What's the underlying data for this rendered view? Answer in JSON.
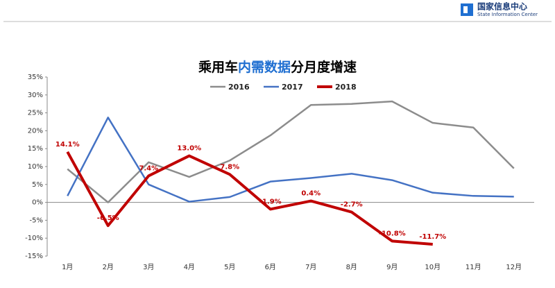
{
  "header": {
    "org": "国家信息中心",
    "org_en": "State Information Center"
  },
  "chart_data": {
    "type": "line",
    "title": [
      {
        "text": "乘用车",
        "color": "#000000"
      },
      {
        "text": "内需数据",
        "color": "#1f6fd1"
      },
      {
        "text": "分月度增速",
        "color": "#000000"
      }
    ],
    "categories": [
      "1月",
      "2月",
      "3月",
      "4月",
      "5月",
      "6月",
      "7月",
      "8月",
      "9月",
      "10月",
      "11月",
      "12月"
    ],
    "series": [
      {
        "name": "2016",
        "color": "#8c8c8c",
        "width": 2.5,
        "values": [
          9.3,
          0,
          11.2,
          7.1,
          11.7,
          18.7,
          27.2,
          27.5,
          28.2,
          22.2,
          20.9,
          9.5
        ]
      },
      {
        "name": "2017",
        "color": "#4472c4",
        "width": 2.5,
        "values": [
          1.8,
          23.7,
          5.0,
          0.2,
          1.5,
          5.8,
          6.8,
          8.0,
          6.2,
          2.7,
          1.8,
          1.6
        ]
      },
      {
        "name": "2018",
        "color": "#c00000",
        "width": 4,
        "values": [
          14.1,
          -6.5,
          7.4,
          13.0,
          7.8,
          -1.9,
          0.4,
          -2.7,
          -10.8,
          -11.7,
          null,
          null
        ],
        "value_labels": [
          "14.1%",
          "-6.5%",
          "7.4%",
          "13.0%",
          "7.8%",
          "-1.9%",
          "0.4%",
          "-2.7%",
          "-10.8%",
          "-11.7%",
          null,
          null
        ]
      }
    ],
    "ylim": [
      -15,
      35
    ],
    "yticks": [
      {
        "value": -15,
        "label": "-15%"
      },
      {
        "value": -10,
        "label": "-10%"
      },
      {
        "value": -5,
        "label": "-5%"
      },
      {
        "value": 0,
        "label": "0%"
      },
      {
        "value": 5,
        "label": "5%"
      },
      {
        "value": 10,
        "label": "10%"
      },
      {
        "value": 15,
        "label": "15%"
      },
      {
        "value": 20,
        "label": "20%"
      },
      {
        "value": 25,
        "label": "25%"
      },
      {
        "value": 30,
        "label": "30%"
      },
      {
        "value": 35,
        "label": "35%"
      }
    ],
    "grid": false
  }
}
